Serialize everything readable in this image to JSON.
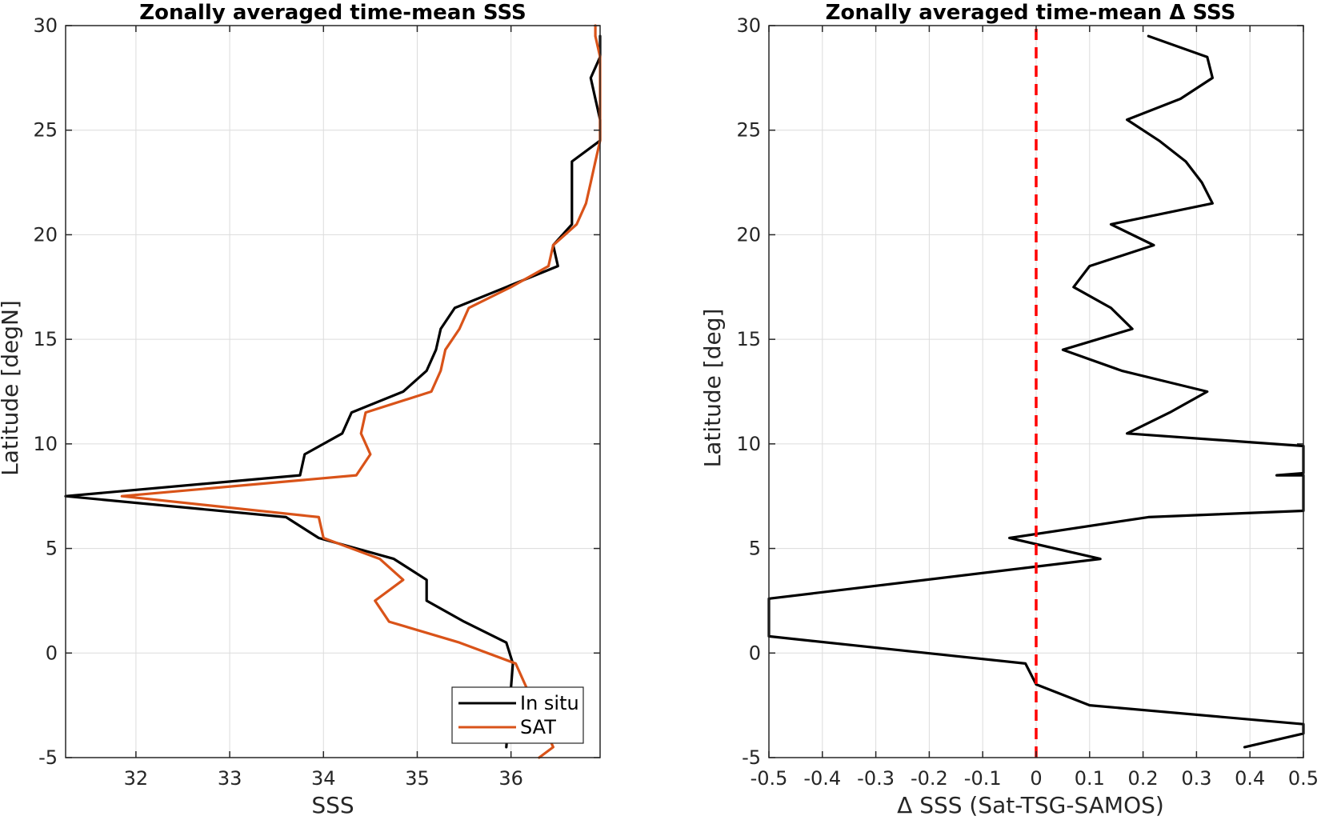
{
  "chart_data": [
    {
      "type": "line",
      "title": "Zonally averaged time-mean SSS",
      "xlabel": "SSS",
      "ylabel": "Latitude [degN]",
      "xlim": [
        31.25,
        36.95
      ],
      "ylim": [
        -5,
        30
      ],
      "xticks": [
        32,
        33,
        34,
        35,
        36
      ],
      "yticks": [
        -5,
        0,
        5,
        10,
        15,
        20,
        25,
        30
      ],
      "grid": true,
      "legend": "bottom-right",
      "series": [
        {
          "name": "In situ",
          "color": "#000000",
          "points": [
            [
              35.95,
              -4.5
            ],
            [
              36.02,
              -0.5
            ],
            [
              35.95,
              0.5
            ],
            [
              35.5,
              1.5
            ],
            [
              35.1,
              2.5
            ],
            [
              35.1,
              3.5
            ],
            [
              34.75,
              4.5
            ],
            [
              33.95,
              5.5
            ],
            [
              33.6,
              6.5
            ],
            [
              31.25,
              7.5
            ],
            [
              33.75,
              8.5
            ],
            [
              33.8,
              9.5
            ],
            [
              34.2,
              10.5
            ],
            [
              34.3,
              11.5
            ],
            [
              34.85,
              12.5
            ],
            [
              35.1,
              13.5
            ],
            [
              35.2,
              14.5
            ],
            [
              35.25,
              15.5
            ],
            [
              35.4,
              16.5
            ],
            [
              35.95,
              17.5
            ],
            [
              36.5,
              18.5
            ],
            [
              36.45,
              19.5
            ],
            [
              36.65,
              20.5
            ],
            [
              36.65,
              21.5
            ],
            [
              36.65,
              22.5
            ],
            [
              36.65,
              23.5
            ],
            [
              36.95,
              24.5
            ],
            [
              36.95,
              25.5
            ],
            [
              36.9,
              26.5
            ],
            [
              36.85,
              27.5
            ],
            [
              36.95,
              28.5
            ],
            [
              36.95,
              29.5
            ]
          ]
        },
        {
          "name": "SAT",
          "color": "#D95319",
          "points": [
            [
              36.3,
              -5
            ],
            [
              36.45,
              -4.5
            ],
            [
              36.05,
              -0.5
            ],
            [
              35.45,
              0.5
            ],
            [
              34.7,
              1.5
            ],
            [
              34.55,
              2.5
            ],
            [
              34.85,
              3.5
            ],
            [
              34.6,
              4.5
            ],
            [
              34.0,
              5.5
            ],
            [
              33.95,
              6.5
            ],
            [
              31.85,
              7.5
            ],
            [
              34.35,
              8.5
            ],
            [
              34.5,
              9.5
            ],
            [
              34.4,
              10.5
            ],
            [
              34.45,
              11.5
            ],
            [
              35.15,
              12.5
            ],
            [
              35.25,
              13.5
            ],
            [
              35.3,
              14.5
            ],
            [
              35.45,
              15.5
            ],
            [
              35.55,
              16.5
            ],
            [
              36.0,
              17.5
            ],
            [
              36.4,
              18.5
            ],
            [
              36.45,
              19.5
            ],
            [
              36.7,
              20.5
            ],
            [
              36.8,
              21.5
            ],
            [
              36.85,
              22.5
            ],
            [
              36.9,
              23.5
            ],
            [
              36.95,
              24.5
            ],
            [
              36.95,
              25.5
            ],
            [
              36.95,
              26.5
            ],
            [
              36.95,
              27.5
            ],
            [
              36.95,
              28.5
            ],
            [
              36.9,
              29.5
            ],
            [
              36.9,
              30
            ]
          ]
        }
      ]
    },
    {
      "type": "line",
      "title": "Zonally averaged time-mean Δ SSS",
      "xlabel": "Δ SSS (Sat-TSG-SAMOS)",
      "ylabel": "Latitude [deg]",
      "xlim": [
        -0.5,
        0.5
      ],
      "ylim": [
        -5,
        30
      ],
      "xticks": [
        -0.5,
        -0.4,
        -0.3,
        -0.2,
        -0.1,
        0,
        0.1,
        0.2,
        0.3,
        0.4,
        0.5
      ],
      "xtick_labels": [
        "-0.5",
        "-0.4",
        "-0.3",
        "-0.2",
        "-0.1",
        "0",
        "0.1",
        "0.2",
        "0.3",
        "0.4",
        "0.5"
      ],
      "yticks": [
        -5,
        0,
        5,
        10,
        15,
        20,
        25,
        30
      ],
      "grid": true,
      "zero_line": {
        "x": 0,
        "color": "#FF0000",
        "style": "dashed"
      },
      "series": [
        {
          "color": "#000000",
          "points": [
            [
              0.39,
              -4.5
            ],
            [
              0.5,
              -3.85
            ],
            [
              0.5,
              -3.4
            ],
            [
              0.1,
              -2.5
            ],
            [
              0.0,
              -1.5
            ],
            [
              -0.02,
              -0.5
            ],
            [
              -0.5,
              0.8
            ],
            [
              -0.5,
              2.6
            ],
            [
              0.12,
              4.5
            ],
            [
              -0.05,
              5.5
            ],
            [
              0.21,
              6.5
            ],
            [
              0.5,
              6.8
            ],
            [
              0.5,
              8.5
            ],
            [
              0.45,
              8.5
            ],
            [
              0.5,
              8.6
            ],
            [
              0.5,
              9.9
            ],
            [
              0.17,
              10.5
            ],
            [
              0.25,
              11.5
            ],
            [
              0.32,
              12.5
            ],
            [
              0.16,
              13.5
            ],
            [
              0.05,
              14.5
            ],
            [
              0.18,
              15.5
            ],
            [
              0.14,
              16.5
            ],
            [
              0.07,
              17.5
            ],
            [
              0.1,
              18.5
            ],
            [
              0.22,
              19.5
            ],
            [
              0.14,
              20.5
            ],
            [
              0.33,
              21.5
            ],
            [
              0.31,
              22.5
            ],
            [
              0.28,
              23.5
            ],
            [
              0.23,
              24.5
            ],
            [
              0.17,
              25.5
            ],
            [
              0.27,
              26.5
            ],
            [
              0.33,
              27.5
            ],
            [
              0.32,
              28.5
            ],
            [
              0.21,
              29.5
            ]
          ]
        }
      ]
    }
  ],
  "legend": {
    "entries": [
      {
        "label": "In situ",
        "color": "#000000"
      },
      {
        "label": "SAT",
        "color": "#D95319"
      }
    ]
  }
}
